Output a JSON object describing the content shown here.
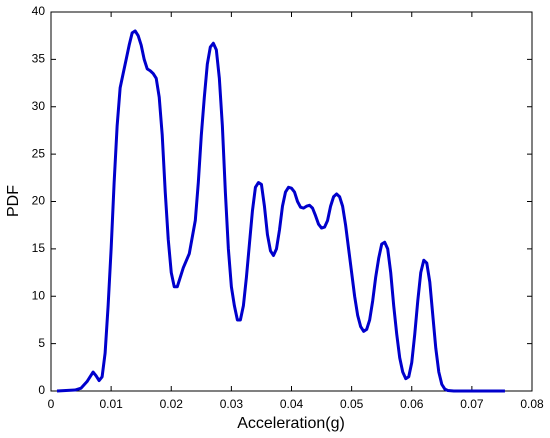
{
  "chart_data": {
    "type": "line",
    "xlabel": "Acceleration(g)",
    "ylabel": "PDF",
    "x": [
      0.001,
      0.004,
      0.005,
      0.006,
      0.007,
      0.0075,
      0.008,
      0.0085,
      0.009,
      0.0095,
      0.01,
      0.0105,
      0.011,
      0.0115,
      0.012,
      0.0125,
      0.013,
      0.0135,
      0.014,
      0.0145,
      0.015,
      0.0155,
      0.016,
      0.0165,
      0.017,
      0.0175,
      0.018,
      0.0185,
      0.019,
      0.0195,
      0.02,
      0.0205,
      0.021,
      0.0215,
      0.022,
      0.023,
      0.024,
      0.0245,
      0.025,
      0.0255,
      0.026,
      0.0265,
      0.027,
      0.0275,
      0.028,
      0.0285,
      0.029,
      0.0295,
      0.03,
      0.0305,
      0.031,
      0.0315,
      0.032,
      0.0325,
      0.033,
      0.0335,
      0.034,
      0.0345,
      0.035,
      0.0355,
      0.036,
      0.0365,
      0.037,
      0.0375,
      0.038,
      0.0385,
      0.039,
      0.0395,
      0.04,
      0.0405,
      0.041,
      0.0415,
      0.042,
      0.0425,
      0.043,
      0.0435,
      0.044,
      0.0445,
      0.045,
      0.0455,
      0.046,
      0.0465,
      0.047,
      0.0475,
      0.048,
      0.0485,
      0.049,
      0.0495,
      0.05,
      0.0505,
      0.051,
      0.0515,
      0.052,
      0.0525,
      0.053,
      0.0535,
      0.054,
      0.0545,
      0.055,
      0.0555,
      0.056,
      0.0565,
      0.057,
      0.0575,
      0.058,
      0.0585,
      0.059,
      0.0595,
      0.06,
      0.0605,
      0.061,
      0.0615,
      0.062,
      0.0625,
      0.063,
      0.0635,
      0.064,
      0.0645,
      0.065,
      0.0655,
      0.066,
      0.067,
      0.0755
    ],
    "series": [
      {
        "color": "#0000cc",
        "values": [
          0,
          0.1,
          0.3,
          1.0,
          2.0,
          1.6,
          1.1,
          1.5,
          4,
          9,
          15,
          22,
          28,
          32,
          33.5,
          35,
          36.5,
          37.8,
          38,
          37.5,
          36.5,
          35,
          34,
          33.8,
          33.5,
          33,
          31,
          27,
          21,
          16,
          12.5,
          11,
          11,
          12,
          13,
          14.5,
          18,
          22,
          27,
          31,
          34.5,
          36.3,
          36.7,
          36,
          33,
          28,
          21,
          15,
          11,
          9,
          7.5,
          7.5,
          9,
          12,
          15.5,
          19,
          21.5,
          22,
          21.8,
          19.5,
          16.5,
          14.8,
          14.3,
          15,
          17,
          19.5,
          21,
          21.5,
          21.4,
          21,
          20,
          19.4,
          19.3,
          19.5,
          19.6,
          19.3,
          18.5,
          17.6,
          17.2,
          17.3,
          18,
          19.5,
          20.5,
          20.8,
          20.5,
          19.5,
          17.5,
          15,
          12.5,
          10,
          8,
          6.8,
          6.3,
          6.5,
          7.5,
          9.5,
          12,
          14,
          15.5,
          15.7,
          15,
          12.5,
          9,
          6,
          3.5,
          2,
          1.3,
          1.5,
          3,
          6,
          9.5,
          12.5,
          13.8,
          13.5,
          11.5,
          8,
          4.5,
          2,
          0.7,
          0.2,
          0.05,
          0,
          0
        ]
      }
    ],
    "xlim": [
      0,
      0.08
    ],
    "xticks": [
      0,
      0.01,
      0.02,
      0.03,
      0.04,
      0.05,
      0.06,
      0.07,
      0.08
    ],
    "ylim": [
      0,
      40
    ],
    "yticks": [
      0,
      5,
      10,
      15,
      20,
      25,
      30,
      35,
      40
    ]
  }
}
